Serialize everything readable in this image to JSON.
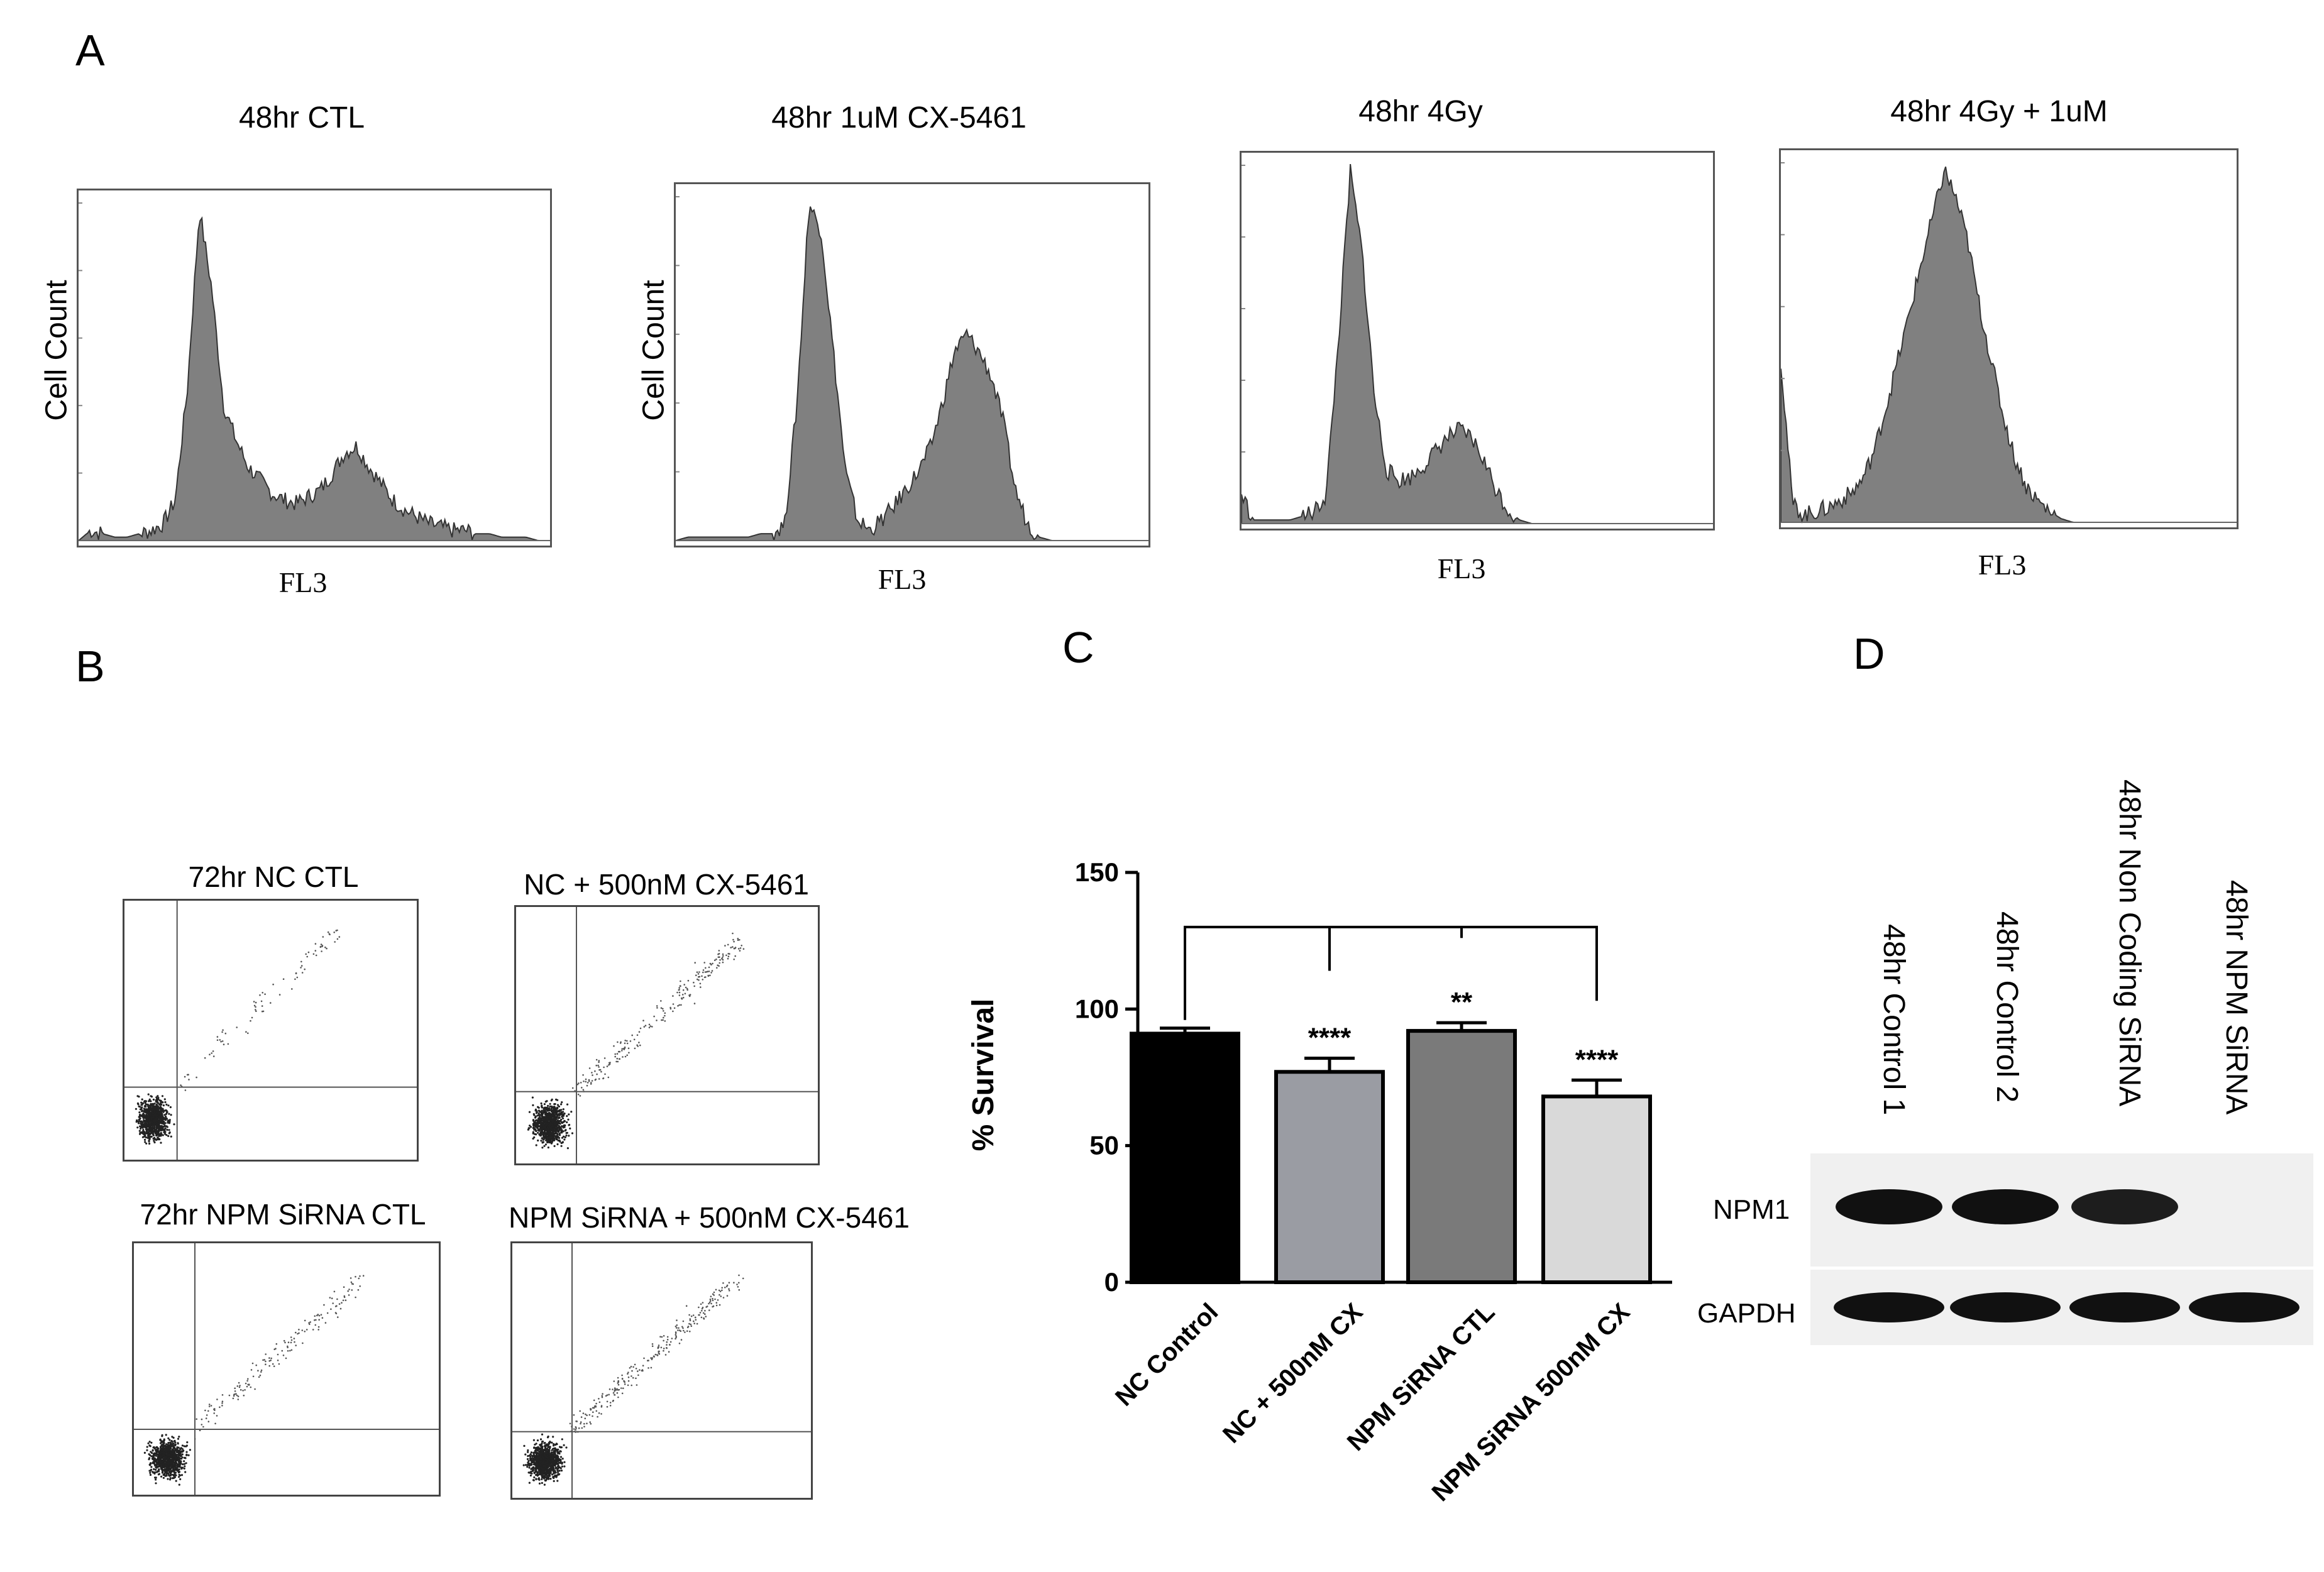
{
  "panels": {
    "a": "A",
    "b": "B",
    "c": "C",
    "d": "D"
  },
  "histograms": [
    {
      "title": "48hr CTL",
      "xlabel": "FL3",
      "ylabel": "Cell Count",
      "profile": [
        0,
        0.03,
        0.02,
        0.01,
        0.01,
        0.02,
        0.03,
        0.05,
        0.12,
        0.45,
        0.98,
        0.75,
        0.4,
        0.3,
        0.22,
        0.18,
        0.14,
        0.12,
        0.11,
        0.13,
        0.15,
        0.2,
        0.26,
        0.28,
        0.22,
        0.17,
        0.12,
        0.09,
        0.07,
        0.05,
        0.04,
        0.03,
        0.03,
        0.02,
        0.02,
        0.01,
        0.01,
        0.01,
        0.0,
        0.0
      ]
    },
    {
      "title": "48hr 1uM CX-5461",
      "xlabel": "FL3",
      "ylabel": "Cell Count",
      "profile": [
        0,
        0.01,
        0.01,
        0.01,
        0.01,
        0.01,
        0.01,
        0.02,
        0.02,
        0.05,
        0.4,
        0.98,
        0.9,
        0.55,
        0.2,
        0.06,
        0.03,
        0.06,
        0.1,
        0.15,
        0.2,
        0.27,
        0.4,
        0.55,
        0.6,
        0.55,
        0.48,
        0.35,
        0.15,
        0.05,
        0.01,
        0,
        0,
        0,
        0,
        0,
        0,
        0,
        0,
        0
      ]
    },
    {
      "title": "48hr 4Gy",
      "xlabel": "FL3",
      "ylabel": "",
      "profile": [
        0.08,
        0.01,
        0.01,
        0.01,
        0.01,
        0.02,
        0.03,
        0.08,
        0.5,
        0.98,
        0.75,
        0.35,
        0.15,
        0.12,
        0.13,
        0.16,
        0.2,
        0.24,
        0.26,
        0.24,
        0.18,
        0.1,
        0.04,
        0.01,
        0,
        0,
        0,
        0,
        0,
        0,
        0,
        0,
        0,
        0,
        0,
        0,
        0,
        0,
        0,
        0
      ]
    },
    {
      "title": "48hr 4Gy + 1uM",
      "xlabel": "FL3",
      "ylabel": "",
      "profile": [
        0.45,
        0.05,
        0.02,
        0.03,
        0.04,
        0.06,
        0.08,
        0.12,
        0.2,
        0.32,
        0.45,
        0.58,
        0.72,
        0.85,
        0.98,
        0.9,
        0.78,
        0.6,
        0.45,
        0.3,
        0.18,
        0.1,
        0.06,
        0.03,
        0.01,
        0,
        0,
        0,
        0,
        0,
        0,
        0,
        0,
        0,
        0,
        0,
        0,
        0,
        0,
        0
      ]
    }
  ],
  "flow_plots": [
    {
      "title": "72hr NC CTL"
    },
    {
      "title": "NC + 500nM CX-5461"
    },
    {
      "title": "72hr NPM SiRNA CTL"
    },
    {
      "title": "NPM SiRNA + 500nM CX-5461"
    }
  ],
  "chart_data": {
    "type": "bar",
    "categories": [
      "NC Control",
      "NC + 500nM CX",
      "NPM SiRNA CTL",
      "NPM SiRNA 500nM CX"
    ],
    "values": [
      91,
      77,
      92,
      68
    ],
    "errors": [
      2,
      5,
      3,
      6
    ],
    "significance": [
      "",
      "****",
      "**",
      "****"
    ],
    "ylabel": "% Survival",
    "ylim": [
      0,
      150
    ],
    "yticks": [
      "0",
      "50",
      "100",
      "150"
    ],
    "colors": [
      "#000000",
      "#9a9ca3",
      "#7a7a7a",
      "#d9d9d9"
    ]
  },
  "western": {
    "lanes": [
      "48hr Control 1",
      "48hr Control 2",
      "48hr Non Coding SiRNA",
      "48hr NPM SiRNA"
    ],
    "rows": [
      "NPM1",
      "GAPDH"
    ],
    "npm1_levels": [
      1,
      1,
      0.95,
      0
    ],
    "gapdh_levels": [
      1,
      1,
      1,
      1
    ]
  }
}
